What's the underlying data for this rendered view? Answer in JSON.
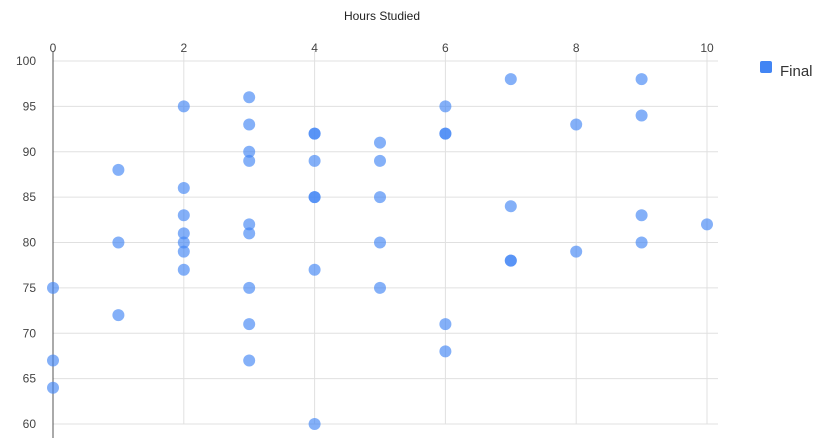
{
  "chart_data": {
    "type": "scatter",
    "xlabel": "Hours Studied",
    "ylabel": "",
    "xlim": [
      0,
      10
    ],
    "ylim": [
      60,
      100
    ],
    "x_ticks": [
      "0",
      "2",
      "4",
      "6",
      "8",
      "10"
    ],
    "y_ticks": [
      "100",
      "95",
      "90",
      "85",
      "80",
      "75",
      "70",
      "65",
      "60"
    ],
    "x_axis_position": "top",
    "grid": true,
    "legend_position": "top-right",
    "series": [
      {
        "name": "Final",
        "color": "#4285f4",
        "points": [
          [
            0,
            75
          ],
          [
            0,
            67
          ],
          [
            0,
            64
          ],
          [
            1,
            88
          ],
          [
            1,
            80
          ],
          [
            1,
            72
          ],
          [
            2,
            95
          ],
          [
            2,
            86
          ],
          [
            2,
            83
          ],
          [
            2,
            81
          ],
          [
            2,
            80
          ],
          [
            2,
            79
          ],
          [
            2,
            77
          ],
          [
            3,
            96
          ],
          [
            3,
            93
          ],
          [
            3,
            90
          ],
          [
            3,
            89
          ],
          [
            3,
            82
          ],
          [
            3,
            81
          ],
          [
            3,
            75
          ],
          [
            3,
            71
          ],
          [
            3,
            67
          ],
          [
            4,
            92
          ],
          [
            4,
            92
          ],
          [
            4,
            89
          ],
          [
            4,
            85
          ],
          [
            4,
            85
          ],
          [
            4,
            77
          ],
          [
            4,
            60
          ],
          [
            5,
            91
          ],
          [
            5,
            89
          ],
          [
            5,
            85
          ],
          [
            5,
            80
          ],
          [
            5,
            75
          ],
          [
            6,
            95
          ],
          [
            6,
            92
          ],
          [
            6,
            92
          ],
          [
            6,
            71
          ],
          [
            6,
            68
          ],
          [
            7,
            98
          ],
          [
            7,
            84
          ],
          [
            7,
            78
          ],
          [
            7,
            78
          ],
          [
            8,
            93
          ],
          [
            8,
            79
          ],
          [
            9,
            98
          ],
          [
            9,
            94
          ],
          [
            9,
            83
          ],
          [
            9,
            80
          ],
          [
            10,
            82
          ]
        ]
      }
    ]
  }
}
